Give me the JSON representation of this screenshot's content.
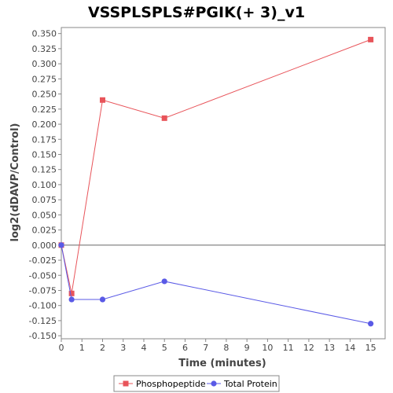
{
  "chart_data": {
    "type": "line",
    "title": "VSSPLSPLS#PGIK(+ 3)_v1",
    "xlabel": "Time (minutes)",
    "ylabel": "log2(dDAVP/Control)",
    "xlim": [
      0,
      15.7
    ],
    "ylim": [
      -0.155,
      0.36
    ],
    "x_ticks": [
      0,
      1,
      2,
      3,
      4,
      5,
      6,
      7,
      8,
      9,
      10,
      11,
      12,
      13,
      14,
      15
    ],
    "y_ticks": [
      0.35,
      0.325,
      0.3,
      0.275,
      0.25,
      0.225,
      0.2,
      0.175,
      0.15,
      0.125,
      0.1,
      0.075,
      0.05,
      0.025,
      0.0,
      -0.025,
      -0.05,
      -0.075,
      -0.1,
      -0.125,
      -0.15
    ],
    "y_tick_labels": [
      "0.350",
      "0.325",
      "0.300",
      "0.275",
      "0.250",
      "0.225",
      "0.200",
      "0.175",
      "0.150",
      "0.125",
      "0.100",
      "0.075",
      "0.050",
      "0.025",
      "0.000",
      "-0.025",
      "-0.050",
      "-0.075",
      "-0.100",
      "-0.125",
      "-0.150"
    ],
    "zero_line": true,
    "grid": false,
    "legend_position": "bottom",
    "series": [
      {
        "name": "Phosphopeptide",
        "color": "#e8545a",
        "marker": "square",
        "x": [
          0,
          0.5,
          2,
          5,
          15
        ],
        "y": [
          0.0,
          -0.08,
          0.24,
          0.21,
          0.34
        ]
      },
      {
        "name": "Total Protein",
        "color": "#5a5ae6",
        "marker": "circle",
        "x": [
          0,
          0.5,
          2,
          5,
          15
        ],
        "y": [
          0.0,
          -0.09,
          -0.09,
          -0.06,
          -0.13
        ]
      }
    ]
  }
}
